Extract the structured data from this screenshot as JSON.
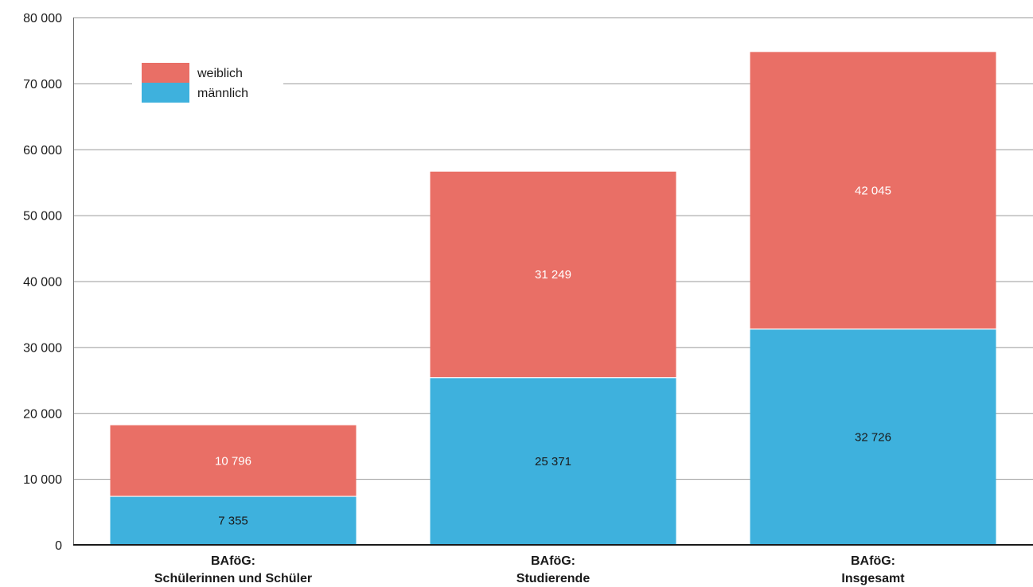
{
  "chart_data": {
    "type": "bar",
    "stacked": true,
    "categories": [
      [
        "BAföG:",
        "Schülerinnen und Schüler"
      ],
      [
        "BAföG:",
        "Studierende"
      ],
      [
        "BAföG:",
        "Insgesamt"
      ]
    ],
    "series": [
      {
        "name": "männlich",
        "color": "#3eb1dd",
        "label_color": "#1a1a1a",
        "values": [
          7355,
          25371,
          32726
        ],
        "labels": [
          "7 355",
          "25 371",
          "32 726"
        ]
      },
      {
        "name": "weiblich",
        "color": "#e96f66",
        "label_color": "#ffffff",
        "values": [
          10796,
          31249,
          42045
        ],
        "labels": [
          "10 796",
          "31 249",
          "42 045"
        ]
      }
    ],
    "ylim": [
      0,
      80000
    ],
    "yticks": [
      0,
      10000,
      20000,
      30000,
      40000,
      50000,
      60000,
      70000,
      80000
    ],
    "ytick_labels": [
      "0",
      "10 000",
      "20 000",
      "30 000",
      "40 000",
      "50 000",
      "60 000",
      "70 000",
      "80 000"
    ],
    "grid": true,
    "legend_position": "top-left",
    "legend_order": [
      "weiblich",
      "männlich"
    ]
  }
}
